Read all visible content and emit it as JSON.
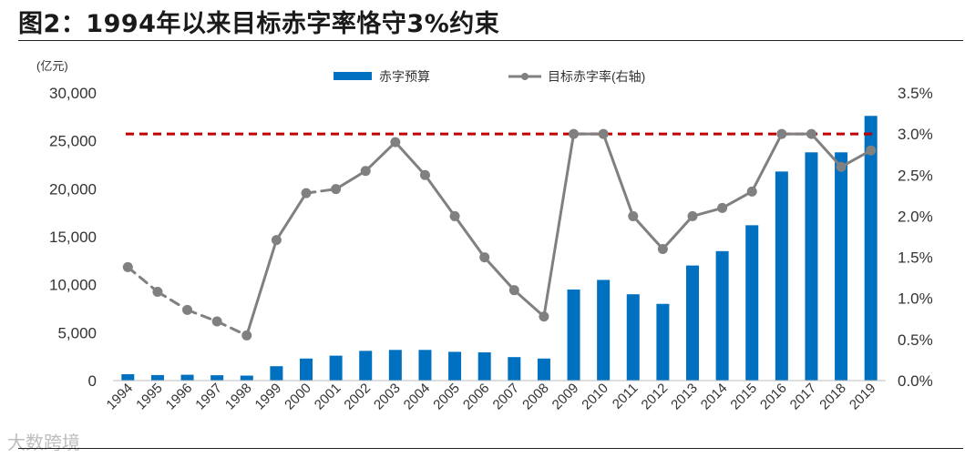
{
  "figure": {
    "title": "图2：1994年以来目标赤字率恪守3%约束",
    "watermark": "大数跨境"
  },
  "chart_data": {
    "type": "bar",
    "unit_label": "(亿元)",
    "categories": [
      "1994",
      "1995",
      "1996",
      "1997",
      "1998",
      "1999",
      "2000",
      "2001",
      "2002",
      "2003",
      "2004",
      "2005",
      "2006",
      "2007",
      "2008",
      "2009",
      "2010",
      "2011",
      "2012",
      "2013",
      "2014",
      "2015",
      "2016",
      "2017",
      "2018",
      "2019"
    ],
    "series": [
      {
        "name": "赤字预算",
        "kind": "bar",
        "axis": "left",
        "color": "#0070C0",
        "values": [
          670,
          580,
          610,
          560,
          520,
          1500,
          2300,
          2600,
          3100,
          3200,
          3200,
          3000,
          2950,
          2450,
          2300,
          9500,
          10500,
          9000,
          8000,
          12000,
          13500,
          16200,
          21800,
          23800,
          23800,
          27600
        ]
      },
      {
        "name": "目标赤字率(右轴)",
        "kind": "line",
        "axis": "right",
        "color": "#808080",
        "values": [
          1.38,
          1.08,
          0.86,
          0.72,
          0.55,
          1.71,
          2.28,
          2.33,
          2.55,
          2.9,
          2.5,
          2.0,
          1.5,
          1.1,
          0.78,
          3.0,
          3.0,
          2.0,
          1.6,
          2.0,
          2.1,
          2.3,
          3.0,
          3.0,
          2.6,
          2.8
        ],
        "dashed_segments": [
          [
            0,
            4
          ],
          [
            6,
            7
          ]
        ]
      }
    ],
    "reference_line": {
      "axis": "right",
      "value": 3.0,
      "color": "#C00000",
      "style": "dashed"
    },
    "y_left": {
      "min": 0,
      "max": 30000,
      "ticks": [
        "0",
        "5,000",
        "10,000",
        "15,000",
        "20,000",
        "25,000",
        "30,000"
      ]
    },
    "y_right": {
      "min": 0,
      "max": 3.5,
      "ticks": [
        "0.0%",
        "0.5%",
        "1.0%",
        "1.5%",
        "2.0%",
        "2.5%",
        "3.0%",
        "3.5%"
      ]
    },
    "legend": {
      "position": "top-center"
    },
    "grid": false
  }
}
